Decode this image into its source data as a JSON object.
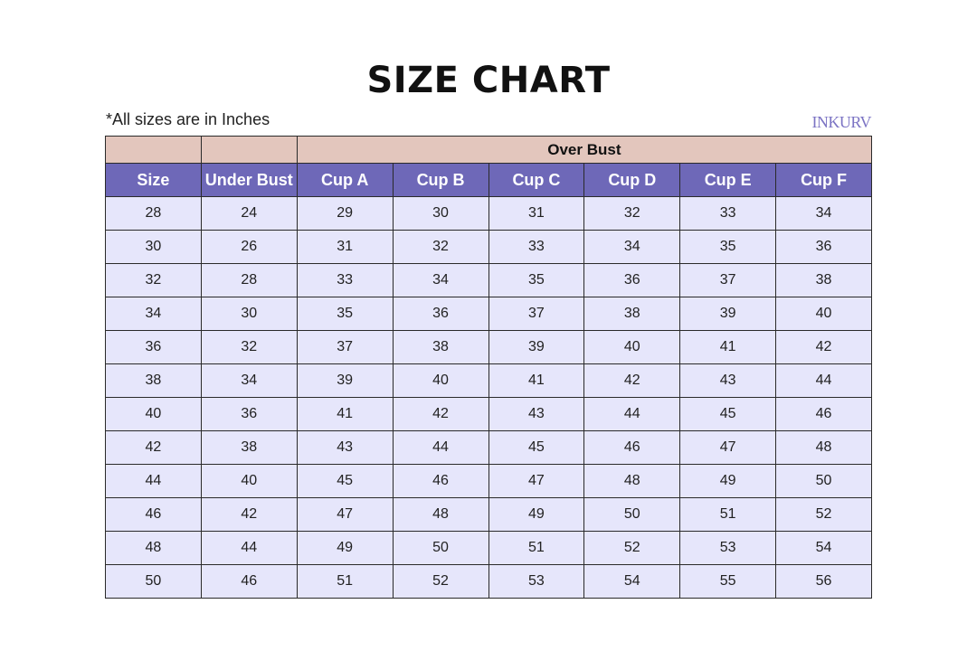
{
  "title": "SIZE CHART",
  "note": "*All sizes are in Inches",
  "logo": "INKURV",
  "colors": {
    "group_header": "#e3c6bd",
    "column_header": "#6e68b8",
    "row": "#e6e6fb"
  },
  "table": {
    "group_header": "Over Bust",
    "columns": [
      "Size",
      "Under Bust",
      "Cup A",
      "Cup B",
      "Cup C",
      "Cup D",
      "Cup E",
      "Cup F"
    ],
    "rows": [
      [
        "28",
        "24",
        "29",
        "30",
        "31",
        "32",
        "33",
        "34"
      ],
      [
        "30",
        "26",
        "31",
        "32",
        "33",
        "34",
        "35",
        "36"
      ],
      [
        "32",
        "28",
        "33",
        "34",
        "35",
        "36",
        "37",
        "38"
      ],
      [
        "34",
        "30",
        "35",
        "36",
        "37",
        "38",
        "39",
        "40"
      ],
      [
        "36",
        "32",
        "37",
        "38",
        "39",
        "40",
        "41",
        "42"
      ],
      [
        "38",
        "34",
        "39",
        "40",
        "41",
        "42",
        "43",
        "44"
      ],
      [
        "40",
        "36",
        "41",
        "42",
        "43",
        "44",
        "45",
        "46"
      ],
      [
        "42",
        "38",
        "43",
        "44",
        "45",
        "46",
        "47",
        "48"
      ],
      [
        "44",
        "40",
        "45",
        "46",
        "47",
        "48",
        "49",
        "50"
      ],
      [
        "46",
        "42",
        "47",
        "48",
        "49",
        "50",
        "51",
        "52"
      ],
      [
        "48",
        "44",
        "49",
        "50",
        "51",
        "52",
        "53",
        "54"
      ],
      [
        "50",
        "46",
        "51",
        "52",
        "53",
        "54",
        "55",
        "56"
      ]
    ]
  }
}
